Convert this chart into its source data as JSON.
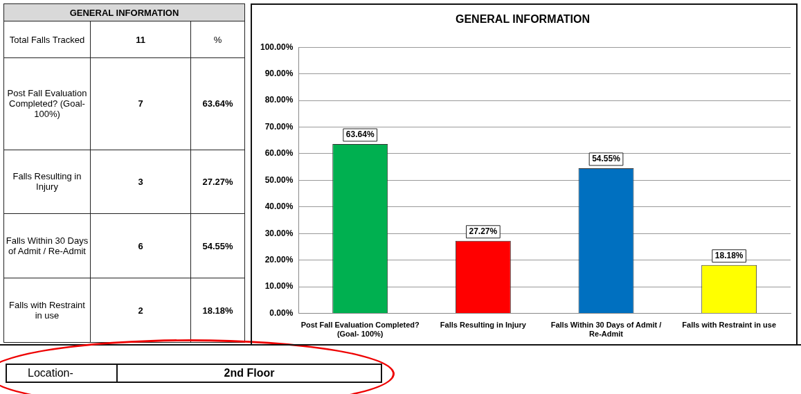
{
  "chart_data": [
    {
      "type": "other",
      "title": "GENERAL INFORMATION",
      "categories": [
        "Total Falls Tracked",
        "Post Fall Evaluation Completed? (Goal- 100%)",
        "Falls Resulting in Injury",
        "Falls Within 30 Days of Admit / Re-Admit",
        "Falls with Restraint in use"
      ],
      "annotations": [
        "11",
        "%",
        "7",
        "63.64%",
        "3",
        "27.27%",
        "6",
        "54.55%",
        "2",
        "18.18%",
        "Location-",
        "2nd Floor"
      ]
    },
    {
      "type": "bar",
      "title": "GENERAL INFORMATION",
      "categories": [
        "Post Fall Evaluation Completed? (Goal- 100%)",
        "Falls Resulting in Injury",
        "Falls Within 30 Days of Admit / Re-Admit",
        "Falls with Restraint in use"
      ],
      "values": [
        63.64,
        27.27,
        54.55,
        18.18
      ],
      "colors": [
        "#00b050",
        "#ff0000",
        "#0070c0",
        "#ffff00"
      ],
      "value_labels": [
        "63.64%",
        "27.27%",
        "54.55%",
        "18.18%"
      ],
      "ylim": [
        0,
        100
      ],
      "yticks": [
        {
          "value": 0,
          "label": "0.00%"
        },
        {
          "value": 10,
          "label": "10.00%"
        },
        {
          "value": 20,
          "label": "20.00%"
        },
        {
          "value": 30,
          "label": "30.00%"
        },
        {
          "value": 40,
          "label": "40.00%"
        },
        {
          "value": 50,
          "label": "50.00%"
        },
        {
          "value": 60,
          "label": "60.00%"
        },
        {
          "value": 70,
          "label": "70.00%"
        },
        {
          "value": 80,
          "label": "80.00%"
        },
        {
          "value": 90,
          "label": "90.00%"
        },
        {
          "value": 100,
          "label": "100.00%"
        }
      ],
      "grid": "y"
    }
  ]
}
